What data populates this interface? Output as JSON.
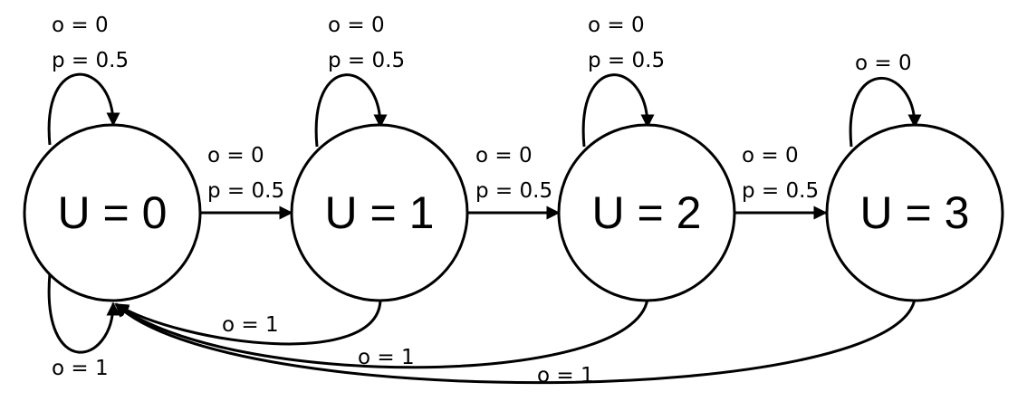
{
  "states": [
    {
      "id": "u0",
      "label": "U = 0"
    },
    {
      "id": "u1",
      "label": "U = 1"
    },
    {
      "id": "u2",
      "label": "U = 2"
    },
    {
      "id": "u3",
      "label": "U = 3"
    }
  ],
  "self_loops_top": [
    {
      "state": "u0",
      "lines": [
        "o = 0",
        "p = 0.5"
      ]
    },
    {
      "state": "u1",
      "lines": [
        "o = 0",
        "p = 0.5"
      ]
    },
    {
      "state": "u2",
      "lines": [
        "o = 0",
        "p = 0.5"
      ]
    },
    {
      "state": "u3",
      "lines": [
        "o = 0"
      ]
    }
  ],
  "self_loop_bottom": {
    "state": "u0",
    "lines": [
      "o = 1"
    ]
  },
  "forward_transitions": [
    {
      "from": "u0",
      "to": "u1",
      "lines": [
        "o = 0",
        "p = 0.5"
      ]
    },
    {
      "from": "u1",
      "to": "u2",
      "lines": [
        "o = 0",
        "p = 0.5"
      ]
    },
    {
      "from": "u2",
      "to": "u3",
      "lines": [
        "o = 0",
        "p = 0.5"
      ]
    }
  ],
  "reset_transitions": [
    {
      "from": "u1",
      "to": "u0",
      "lines": [
        "o = 1"
      ]
    },
    {
      "from": "u2",
      "to": "u0",
      "lines": [
        "o = 1"
      ]
    },
    {
      "from": "u3",
      "to": "u0",
      "lines": [
        "o = 1"
      ]
    }
  ]
}
